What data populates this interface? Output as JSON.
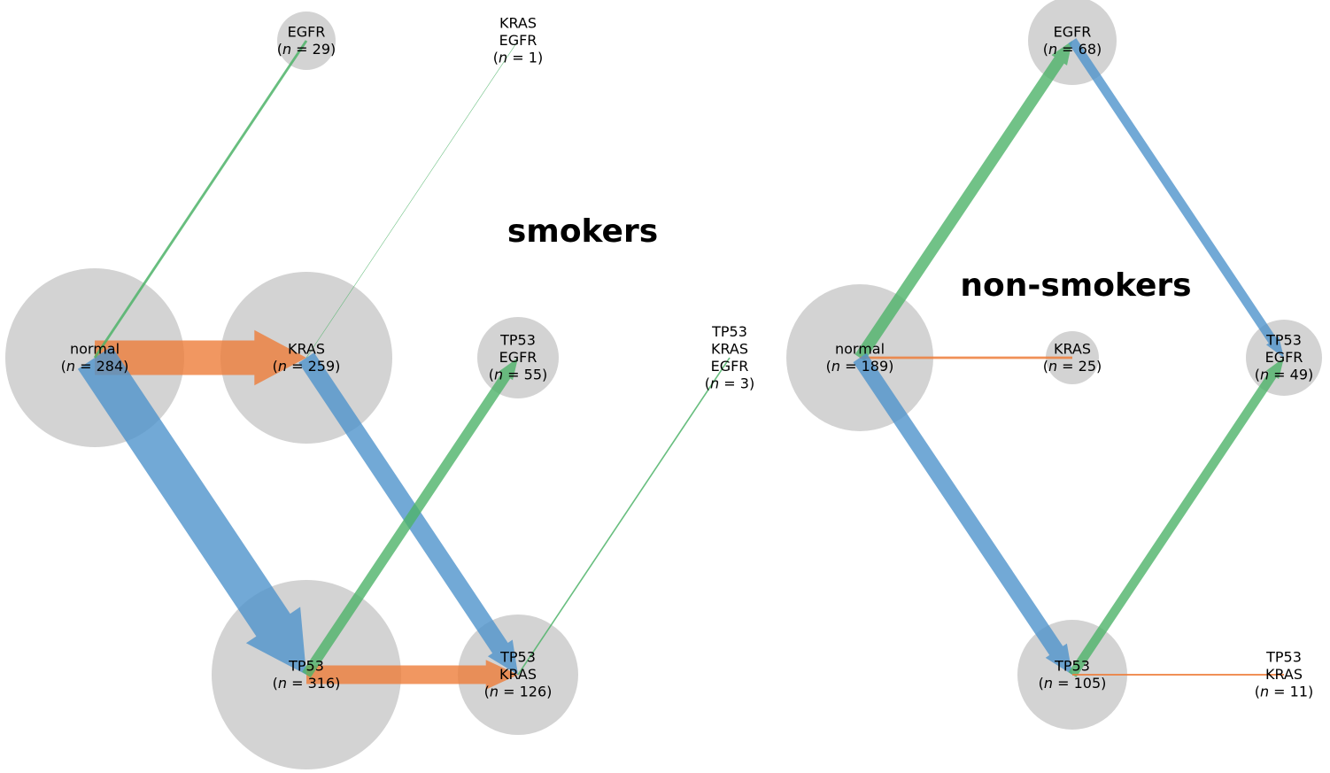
{
  "colors": {
    "node": "#d3d3d3",
    "kras": "#ed7d3a",
    "tp53": "#4f93cc",
    "egfr": "#4db369"
  },
  "panels": [
    {
      "title": "smokers",
      "nodes": [
        {
          "id": "s_normal",
          "lines": [
            "normal"
          ],
          "n": "284"
        },
        {
          "id": "s_kras",
          "lines": [
            "KRAS"
          ],
          "n": "259"
        },
        {
          "id": "s_egfr",
          "lines": [
            "EGFR"
          ],
          "n": "29"
        },
        {
          "id": "s_kras_egfr",
          "lines": [
            "KRAS",
            "EGFR"
          ],
          "n": "1"
        },
        {
          "id": "s_tp53",
          "lines": [
            "TP53"
          ],
          "n": "316"
        },
        {
          "id": "s_tp53_egfr",
          "lines": [
            "TP53",
            "EGFR"
          ],
          "n": "55"
        },
        {
          "id": "s_tp53_kras",
          "lines": [
            "TP53",
            "KRAS"
          ],
          "n": "126"
        },
        {
          "id": "s_tp53_kras_egfr",
          "lines": [
            "TP53",
            "KRAS",
            "EGFR"
          ],
          "n": "3"
        }
      ],
      "edges": [
        {
          "from": "s_normal",
          "to": "s_kras",
          "gene": "kras",
          "count": 259
        },
        {
          "from": "s_normal",
          "to": "s_tp53",
          "gene": "tp53",
          "count": 316
        },
        {
          "from": "s_normal",
          "to": "s_egfr",
          "gene": "egfr",
          "count": 29
        },
        {
          "from": "s_kras",
          "to": "s_tp53_kras",
          "gene": "tp53",
          "count": 126
        },
        {
          "from": "s_kras",
          "to": "s_kras_egfr",
          "gene": "egfr",
          "count": 1
        },
        {
          "from": "s_tp53",
          "to": "s_tp53_kras",
          "gene": "kras",
          "count": 126
        },
        {
          "from": "s_tp53",
          "to": "s_tp53_egfr",
          "gene": "egfr",
          "count": 55
        },
        {
          "from": "s_tp53_kras",
          "to": "s_tp53_kras_egfr",
          "gene": "egfr",
          "count": 3
        }
      ]
    },
    {
      "title": "non-smokers",
      "nodes": [
        {
          "id": "n_normal",
          "lines": [
            "normal"
          ],
          "n": "189"
        },
        {
          "id": "n_egfr",
          "lines": [
            "EGFR"
          ],
          "n": "68"
        },
        {
          "id": "n_kras",
          "lines": [
            "KRAS"
          ],
          "n": "25"
        },
        {
          "id": "n_tp53",
          "lines": [
            "TP53"
          ],
          "n": "105"
        },
        {
          "id": "n_tp53_egfr",
          "lines": [
            "TP53",
            "EGFR"
          ],
          "n": "49"
        },
        {
          "id": "n_tp53_kras",
          "lines": [
            "TP53",
            "KRAS"
          ],
          "n": "11"
        }
      ],
      "edges": [
        {
          "from": "n_normal",
          "to": "n_egfr",
          "gene": "egfr",
          "count": 68
        },
        {
          "from": "n_normal",
          "to": "n_kras",
          "gene": "kras",
          "count": 25
        },
        {
          "from": "n_normal",
          "to": "n_tp53",
          "gene": "tp53",
          "count": 105
        },
        {
          "from": "n_egfr",
          "to": "n_tp53_egfr",
          "gene": "tp53",
          "count": 49
        },
        {
          "from": "n_tp53",
          "to": "n_tp53_egfr",
          "gene": "egfr",
          "count": 49
        },
        {
          "from": "n_tp53",
          "to": "n_tp53_kras",
          "gene": "kras",
          "count": 11
        }
      ]
    }
  ]
}
